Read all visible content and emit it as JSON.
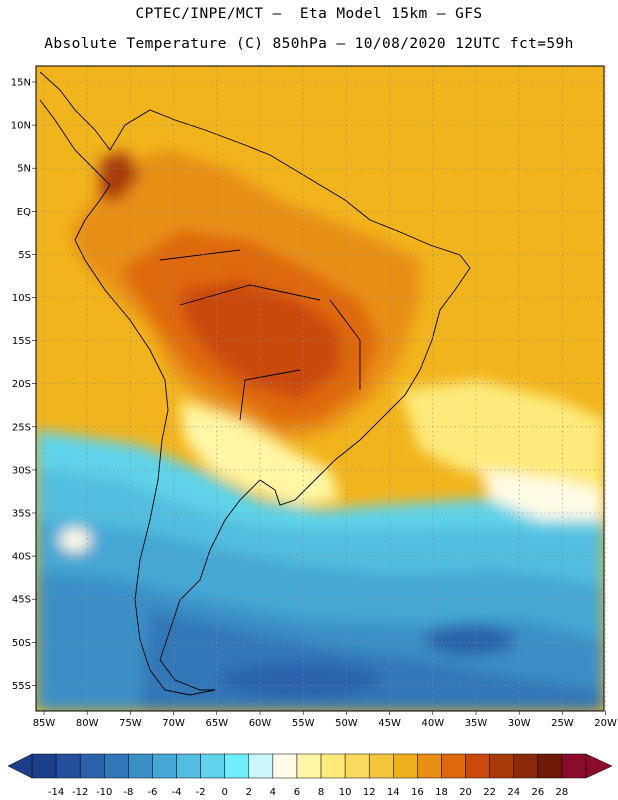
{
  "header": {
    "line1": "CPTEC/INPE/MCT –  Eta Model 15km – GFS",
    "line2": "Absolute Temperature (C) 850hPa – 10/08/2020 12UTC fct=59h"
  },
  "map": {
    "lat_labels": [
      "15N",
      "10N",
      "5N",
      "EQ",
      "5S",
      "10S",
      "15S",
      "20S",
      "25S",
      "30S",
      "35S",
      "40S",
      "45S",
      "50S",
      "55S"
    ],
    "lon_labels": [
      "85W",
      "80W",
      "75W",
      "70W",
      "65W",
      "60W",
      "55W",
      "50W",
      "45W",
      "40W",
      "35W",
      "30W",
      "25W",
      "20W"
    ]
  },
  "colorbar": {
    "tick_labels": [
      "-14",
      "-12",
      "-10",
      "-8",
      "-6",
      "-4",
      "-2",
      "0",
      "2",
      "4",
      "6",
      "8",
      "10",
      "12",
      "14",
      "16",
      "18",
      "20",
      "22",
      "24",
      "26",
      "28"
    ],
    "colors": [
      "#1c3f8c",
      "#234f9c",
      "#2b63aa",
      "#3077b8",
      "#3a8fc6",
      "#45a7d4",
      "#52bddf",
      "#5fd3e9",
      "#71f0fb",
      "#cdf6fb",
      "#fffbe6",
      "#fff7a6",
      "#fdea7a",
      "#f8da5c",
      "#f3c53a",
      "#eeb01a",
      "#e88f12",
      "#df690d",
      "#c94a0b",
      "#a83a09",
      "#8c2a08",
      "#6e1a06",
      "#8a0b2c"
    ]
  }
}
